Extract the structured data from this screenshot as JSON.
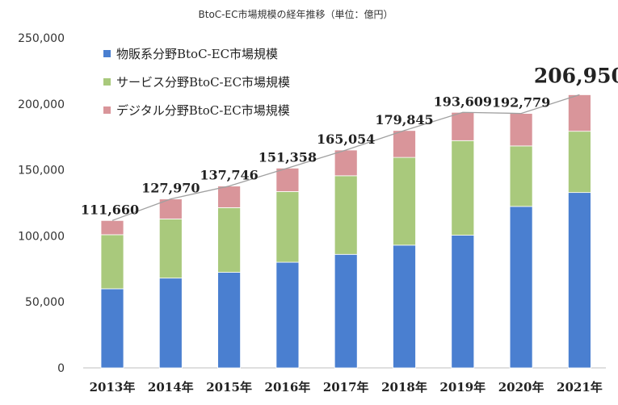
{
  "chart_data": {
    "type": "bar",
    "stacked": true,
    "title": "BtoC-EC市場規模の経年推移（単位：億円）",
    "categories": [
      "2013年",
      "2014年",
      "2015年",
      "2016年",
      "2017年",
      "2018年",
      "2019年",
      "2020年",
      "2021年"
    ],
    "series": [
      {
        "name": "物販系分野BtoC-EC市場規模",
        "color": "#4a7fd0",
        "values": [
          59931,
          68043,
          72398,
          80043,
          86008,
          92992,
          100515,
          122333,
          132865
        ]
      },
      {
        "name": "サービス分野BtoC-EC市場規模",
        "color": "#a9c97c",
        "values": [
          40975,
          44816,
          49014,
          53532,
          59568,
          66471,
          71672,
          45832,
          46424
        ]
      },
      {
        "name": "デジタル分野BtoC-EC市場規模",
        "color": "#d9959a",
        "values": [
          10754,
          15111,
          16334,
          17783,
          19478,
          20382,
          21422,
          24614,
          27661
        ]
      }
    ],
    "totals": [
      111660,
      127970,
      137746,
      151358,
      165054,
      179845,
      193609,
      192779,
      206950
    ],
    "total_labels": [
      "111,660",
      "127,970",
      "137,746",
      "151,358",
      "165,054",
      "179,845",
      "193,609",
      "192,779",
      "206,950"
    ],
    "y_ticks": [
      "0",
      "50,000",
      "100,000",
      "150,000",
      "200,000",
      "250,000"
    ],
    "ylim": [
      0,
      250000
    ],
    "y_tick_values": [
      0,
      50000,
      100000,
      150000,
      200000,
      250000
    ],
    "legend_position": "top-left",
    "grid": false,
    "total_line_color": "#a0a0a0"
  }
}
